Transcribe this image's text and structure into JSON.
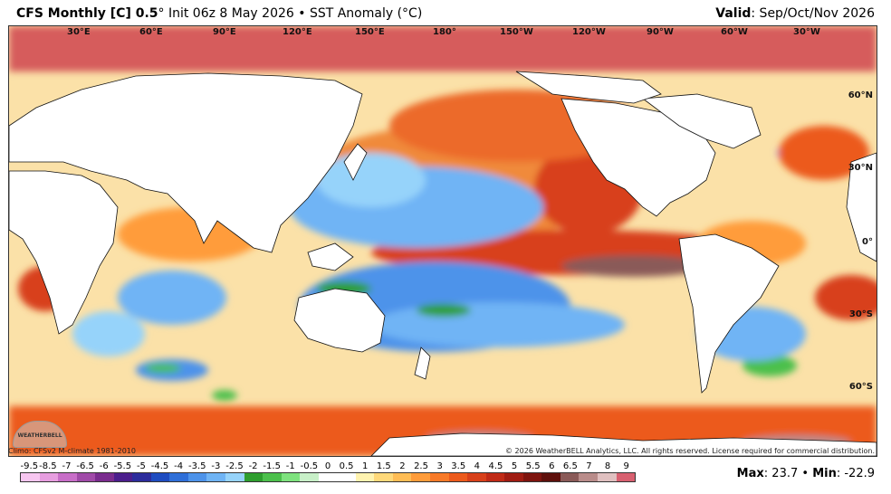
{
  "header": {
    "title_main": "CFS Monthly [C] 0.5",
    "title_sub": "° Init 06z 8 May 2026 • SST Anomaly (°C)",
    "valid_label": "Valid",
    "valid_value": ": Sep/Oct/Nov 2026"
  },
  "map": {
    "longitude_labels": [
      "30°E",
      "60°E",
      "90°E",
      "120°E",
      "150°E",
      "180°",
      "150°W",
      "120°W",
      "90°W",
      "60°W",
      "30°W"
    ],
    "latitude_labels": [
      "60°N",
      "30°N",
      "0°",
      "30°S",
      "60°S"
    ],
    "logo_text": "WEATHERBELL"
  },
  "footer": {
    "climo": "Climo: CFSv2 M-climate 1981-2010",
    "copyright": "© 2026 WeatherBELL Analytics, LLC. All rights reserved. License required for commercial distribution."
  },
  "colorbar": {
    "labels": [
      "-9.5",
      "-8.5",
      "-7",
      "-6.5",
      "-6",
      "-5.5",
      "-5",
      "-4.5",
      "-4",
      "-3.5",
      "-3",
      "-2.5",
      "-2",
      "-1.5",
      "-1",
      "-0.5",
      "0",
      "0.5",
      "1",
      "1.5",
      "2",
      "2.5",
      "3",
      "3.5",
      "4",
      "4.5",
      "5",
      "5.5",
      "6",
      "6.5",
      "7",
      "8",
      "9"
    ],
    "colors": [
      "#f7c6f0",
      "#e79ee0",
      "#c86ec8",
      "#a04aa8",
      "#7a2c8e",
      "#4b1e8c",
      "#2c2c9c",
      "#1e4cc0",
      "#2f6fd8",
      "#4d93ea",
      "#6fb4f5",
      "#96d3fa",
      "#2e9e2e",
      "#4cc04c",
      "#7ee27e",
      "#c8f0c8",
      "#ffffff",
      "#ffffff",
      "#fff3b0",
      "#ffd97a",
      "#ffbd55",
      "#ff9c3a",
      "#f87a28",
      "#ec5a1c",
      "#d8401a",
      "#c02a16",
      "#a01c12",
      "#7e140e",
      "#5e100c",
      "#8a5a58",
      "#b98c8a",
      "#e0c0c0",
      "#d86070"
    ]
  },
  "stats": {
    "max_label": "Max",
    "max_value": ": 23.7",
    "sep": " • ",
    "min_label": "Min",
    "min_value": ": -22.9"
  }
}
